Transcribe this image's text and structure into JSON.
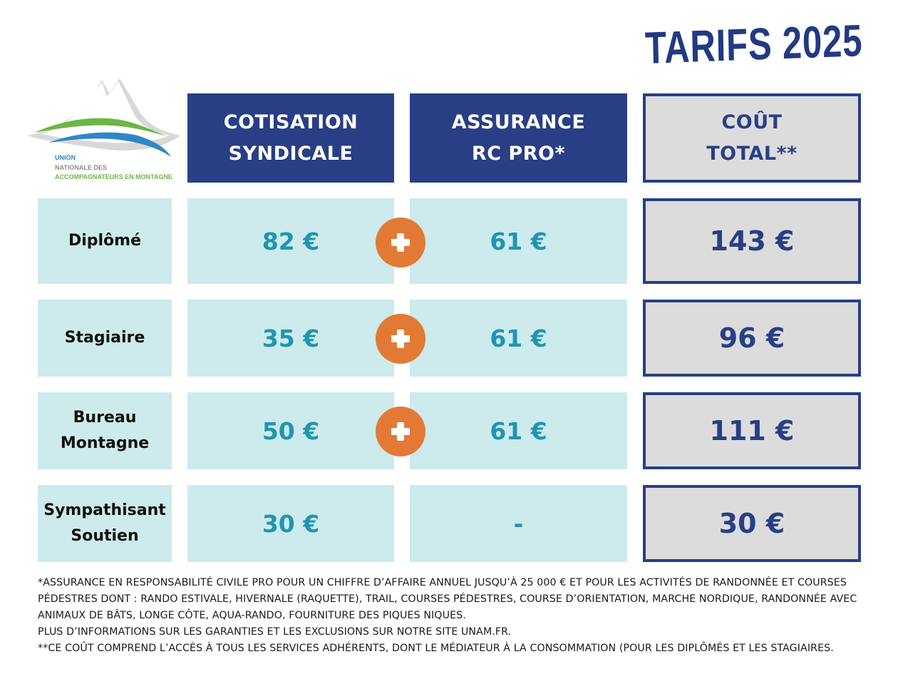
{
  "title": "TARIFS 2025",
  "logo": {
    "lines": [
      "UNION",
      "NATIONALE DES",
      "ACCOMPAGNATEURS EN MONTAGNE"
    ]
  },
  "headers": {
    "cotisation": [
      "COTISATION",
      "SYNDICALE"
    ],
    "assurance": [
      "ASSURANCE",
      "RC PRO*"
    ],
    "total": [
      "COÛT",
      "TOTAL**"
    ]
  },
  "rows": [
    {
      "label": [
        "Diplômé"
      ],
      "cotisation": "82 €",
      "assurance": "61 €",
      "total": "143 €"
    },
    {
      "label": [
        "Stagiaire"
      ],
      "cotisation": "35 €",
      "assurance": "61 €",
      "total": "96 €"
    },
    {
      "label": [
        "Bureau",
        "Montagne"
      ],
      "cotisation": "50 €",
      "assurance": "61 €",
      "total": "111 €"
    },
    {
      "label": [
        "Sympathisant",
        "Soutien"
      ],
      "cotisation": "30 €",
      "assurance": "-",
      "total": "30 €"
    }
  ],
  "notes": [
    "*ASSURANCE EN RESPONSABILITÉ CIVILE PRO POUR UN CHIFFRE D’AFFAIRE ANNUEL JUSQU’À 25 000 € ET POUR LES ACTIVITÉS DE RANDONNÉE ET COURSES PÉDESTRES DONT : RANDO ESTIVALE, HIVERNALE (RAQUETTE), TRAIL, COURSES PÉDESTRES, COURSE D’ORIENTATION, MARCHE NORDIQUE, RANDONNÉE AVEC ANIMAUX DE BÂTS, LONGE CÔTE, AQUA-RANDO, FOURNITURE DES PIQUES NIQUES.",
    "PLUS D’INFORMATIONS SUR LES GARANTIES ET LES EXCLUSIONS SUR NOTRE SITE UNAM.FR.",
    "**CE COÛT COMPREND L’ACCÈS À TOUS LES SERVICES ADHÉRENTS, DONT LE MÉDIATEUR À LA CONSOMMATION (POUR LES DIPLÔMÉS ET LES STAGIAIRES."
  ],
  "colors": {
    "navy": "#283f86",
    "teal_text": "#1f95b0",
    "cell_bg": "#cdeaec",
    "total_bg": "#dcdcdc",
    "plus_orange": "#e27a35"
  }
}
